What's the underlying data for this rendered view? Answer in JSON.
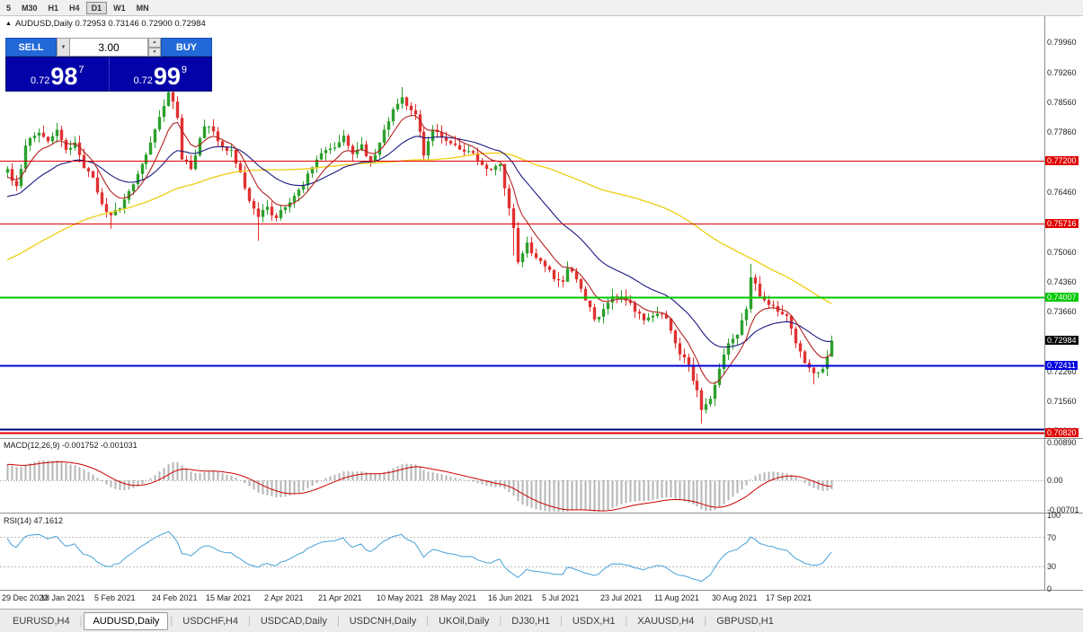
{
  "toolbar": {
    "timeframes": [
      {
        "label": "5",
        "active": false
      },
      {
        "label": "M30",
        "active": false
      },
      {
        "label": "H1",
        "active": false
      },
      {
        "label": "H4",
        "active": false
      },
      {
        "label": "D1",
        "active": true
      },
      {
        "label": "W1",
        "active": false
      },
      {
        "label": "MN",
        "active": false
      }
    ]
  },
  "chart_header": {
    "toggle_icon": "▲",
    "text": "AUDUSD,Daily 0.72953 0.73146 0.72900 0.72984"
  },
  "trade_panel": {
    "sell_label": "SELL",
    "buy_label": "BUY",
    "volume": "3.00",
    "dropdown_icon": "▼",
    "spin_up_icon": "▲",
    "spin_down_icon": "▼",
    "sell_price_prefix": "0.72",
    "sell_price_big": "98",
    "sell_price_sup": "7",
    "buy_price_prefix": "0.72",
    "buy_price_big": "99",
    "buy_price_sup": "9"
  },
  "chart_data": [
    {
      "type": "candlestick",
      "symbol": "AUDUSD",
      "timeframe": "Daily",
      "ohlc_readout": {
        "open": "0.72953",
        "high": "0.73146",
        "low": "0.72900",
        "close": "0.72984"
      },
      "colors": {
        "up": "#2ca02c",
        "down": "#e03131",
        "background": "#ffffff"
      },
      "grid": false,
      "n_candles": 185,
      "seed": 7,
      "prehistory": 120,
      "prehistory_from": 0.706,
      "prehistory_to": 0.769,
      "y_axis": {
        "min": 0.707,
        "max": 0.8058,
        "ticks": [
          [
            "0.79960",
            0.7996
          ],
          [
            "0.79260",
            0.7926
          ],
          [
            "0.78560",
            0.7856
          ],
          [
            "0.77860",
            0.7786
          ],
          [
            "0.76460",
            0.7646
          ],
          [
            "0.75060",
            0.7506
          ],
          [
            "0.74360",
            0.7436
          ],
          [
            "0.73660",
            0.7366
          ],
          [
            "0.72260",
            0.7226
          ],
          [
            "0.71560",
            0.7156
          ],
          [
            "0.70860",
            0.7086
          ]
        ]
      },
      "x_axis": {
        "dates": [
          [
            "29 Dec 2020",
            0
          ],
          [
            "18 Jan 2021",
            13
          ],
          [
            "5 Feb 2021",
            25
          ],
          [
            "24 Feb 2021",
            38
          ],
          [
            "15 Mar 2021",
            50
          ],
          [
            "2 Apr 2021",
            63
          ],
          [
            "21 Apr 2021",
            75
          ],
          [
            "10 May 2021",
            88
          ],
          [
            "28 May 2021",
            100
          ],
          [
            "16 Jun 2021",
            113
          ],
          [
            "5 Jul 2021",
            125
          ],
          [
            "23 Jul 2021",
            138
          ],
          [
            "11 Aug 2021",
            150
          ],
          [
            "30 Aug 2021",
            163
          ],
          [
            "17 Sep 2021",
            175
          ]
        ]
      },
      "close_keypoints": [
        [
          0,
          0.77
        ],
        [
          2,
          0.766
        ],
        [
          4,
          0.7755
        ],
        [
          7,
          0.7785
        ],
        [
          9,
          0.7765
        ],
        [
          11,
          0.7792
        ],
        [
          13,
          0.7745
        ],
        [
          15,
          0.7762
        ],
        [
          17,
          0.7702
        ],
        [
          19,
          0.768
        ],
        [
          21,
          0.7618
        ],
        [
          23,
          0.7592
        ],
        [
          25,
          0.7608
        ],
        [
          27,
          0.7648
        ],
        [
          30,
          0.7712
        ],
        [
          32,
          0.7762
        ],
        [
          34,
          0.7822
        ],
        [
          36,
          0.788
        ],
        [
          37,
          0.7858
        ],
        [
          38,
          0.782
        ],
        [
          39,
          0.7722
        ],
        [
          41,
          0.77
        ],
        [
          43,
          0.7772
        ],
        [
          44,
          0.78
        ],
        [
          46,
          0.7788
        ],
        [
          48,
          0.7752
        ],
        [
          50,
          0.7745
        ],
        [
          52,
          0.7692
        ],
        [
          54,
          0.7625
        ],
        [
          56,
          0.7588
        ],
        [
          58,
          0.7612
        ],
        [
          60,
          0.7585
        ],
        [
          63,
          0.7622
        ],
        [
          66,
          0.7662
        ],
        [
          69,
          0.7722
        ],
        [
          72,
          0.7748
        ],
        [
          75,
          0.7778
        ],
        [
          77,
          0.7735
        ],
        [
          79,
          0.7758
        ],
        [
          81,
          0.7718
        ],
        [
          83,
          0.7762
        ],
        [
          86,
          0.784
        ],
        [
          88,
          0.7868
        ],
        [
          89,
          0.7848
        ],
        [
          91,
          0.7828
        ],
        [
          93,
          0.7732
        ],
        [
          95,
          0.7792
        ],
        [
          97,
          0.7775
        ],
        [
          100,
          0.7756
        ],
        [
          103,
          0.7742
        ],
        [
          105,
          0.772
        ],
        [
          108,
          0.7698
        ],
        [
          110,
          0.7712
        ],
        [
          111,
          0.7655
        ],
        [
          112,
          0.7608
        ],
        [
          113,
          0.7562
        ],
        [
          114,
          0.7482
        ],
        [
          116,
          0.7528
        ],
        [
          118,
          0.7492
        ],
        [
          120,
          0.7472
        ],
        [
          122,
          0.7442
        ],
        [
          124,
          0.7436
        ],
        [
          125,
          0.7468
        ],
        [
          127,
          0.7442
        ],
        [
          129,
          0.7392
        ],
        [
          131,
          0.7348
        ],
        [
          133,
          0.7372
        ],
        [
          135,
          0.7402
        ],
        [
          138,
          0.7392
        ],
        [
          140,
          0.7366
        ],
        [
          142,
          0.7346
        ],
        [
          144,
          0.7356
        ],
        [
          147,
          0.735
        ],
        [
          149,
          0.7292
        ],
        [
          150,
          0.7266
        ],
        [
          152,
          0.7242
        ],
        [
          154,
          0.7182
        ],
        [
          155,
          0.7136
        ],
        [
          157,
          0.7162
        ],
        [
          159,
          0.7232
        ],
        [
          161,
          0.7292
        ],
        [
          163,
          0.7312
        ],
        [
          165,
          0.7372
        ],
        [
          166,
          0.7446
        ],
        [
          168,
          0.7402
        ],
        [
          170,
          0.7382
        ],
        [
          172,
          0.7366
        ],
        [
          174,
          0.7356
        ],
        [
          176,
          0.7292
        ],
        [
          178,
          0.7246
        ],
        [
          180,
          0.7222
        ],
        [
          182,
          0.7232
        ],
        [
          184,
          0.7298
        ]
      ],
      "wick_overrides": [
        [
          23,
          "low",
          0.756
        ],
        [
          36,
          "high",
          0.7906
        ],
        [
          56,
          "low",
          0.7532
        ],
        [
          88,
          "high",
          0.7892
        ],
        [
          113,
          "low",
          0.7498
        ],
        [
          155,
          "low",
          0.7104
        ],
        [
          166,
          "high",
          0.7478
        ],
        [
          180,
          "low",
          0.7196
        ]
      ],
      "moving_averages": [
        {
          "type": "sma",
          "period": 80,
          "color": "#f0d020",
          "width": 1.4
        },
        {
          "type": "ema",
          "period": 25,
          "color": "#191980",
          "width": 1.1
        },
        {
          "type": "ema",
          "period": 8,
          "color": "#b22222",
          "width": 1.1
        }
      ],
      "horizontal_lines": [
        {
          "price": 0.772,
          "color": "#e00000",
          "width": 1,
          "label": "0.77200"
        },
        {
          "price": 0.75716,
          "color": "#e00000",
          "width": 1,
          "label": "0.75716"
        },
        {
          "price": 0.74007,
          "color": "#00c800",
          "width": 2,
          "label": "0.74007"
        },
        {
          "price": 0.72411,
          "color": "#0000e0",
          "width": 2,
          "label": "0.72411"
        },
        {
          "price": 0.709,
          "color": "#000080",
          "width": 2,
          "label": null
        },
        {
          "price": 0.7082,
          "color": "#e00000",
          "width": 2,
          "label": "0.70820"
        }
      ],
      "current_price": {
        "value": 0.72984,
        "label": "0.72984",
        "bg": "#000000"
      }
    },
    {
      "type": "bar",
      "name": "MACD",
      "readout": "MACD(12,26,9) -0.001752 -0.001031",
      "params": [
        12,
        26,
        9
      ],
      "macd_value": "-0.001752",
      "signal_value": "-0.001031",
      "histogram_color": "#b4b4b4",
      "signal_color": "#cc0000",
      "y_ticks": [
        [
          "0.00890",
          0.0089
        ],
        [
          "0.00",
          0
        ],
        [
          "-0.00701",
          -0.00701
        ]
      ]
    },
    {
      "type": "line",
      "name": "RSI",
      "readout": "RSI(14) 47.1612",
      "period": 14,
      "value": "47.1612",
      "color": "#45a0d8",
      "levels": [
        70,
        30
      ],
      "y_ticks": [
        [
          "100",
          100
        ],
        [
          "70",
          70
        ],
        [
          "30",
          30
        ],
        [
          "0",
          0
        ]
      ]
    }
  ],
  "bottom_tabs": {
    "separator": "|",
    "tabs": [
      {
        "label": "EURUSD,H4",
        "active": false
      },
      {
        "label": "AUDUSD,Daily",
        "active": true
      },
      {
        "label": "USDCHF,H4",
        "active": false
      },
      {
        "label": "USDCAD,Daily",
        "active": false
      },
      {
        "label": "USDCNH,Daily",
        "active": false
      },
      {
        "label": "UKOil,Daily",
        "active": false
      },
      {
        "label": "DJ30,H1",
        "active": false
      },
      {
        "label": "USDX,H1",
        "active": false
      },
      {
        "label": "XAUUSD,H4",
        "active": false
      },
      {
        "label": "GBPUSD,H1",
        "active": false
      }
    ]
  }
}
